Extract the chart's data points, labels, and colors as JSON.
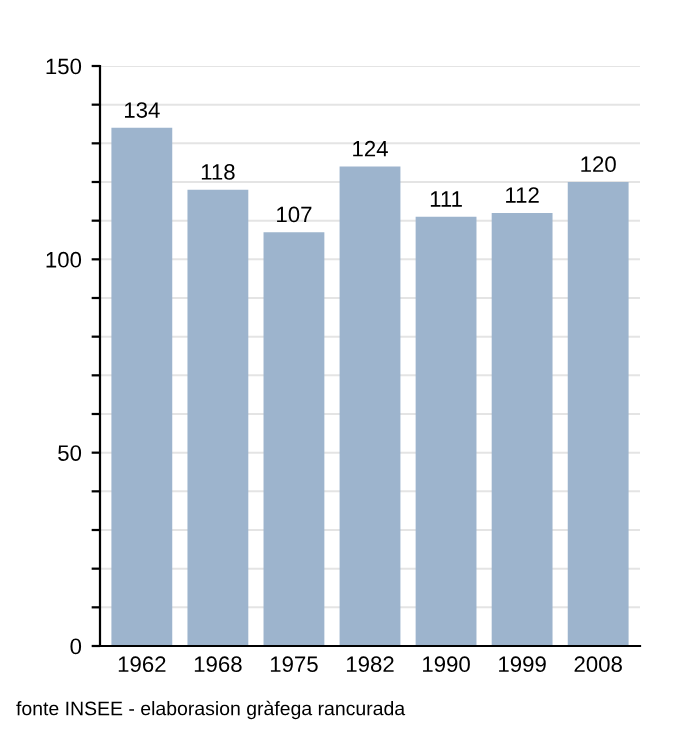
{
  "chart_data": {
    "type": "bar",
    "categories": [
      "1962",
      "1968",
      "1975",
      "1982",
      "1990",
      "1999",
      "2008"
    ],
    "values": [
      134,
      118,
      107,
      124,
      111,
      112,
      120
    ],
    "color": "#9db4cd",
    "ylim": [
      0,
      150
    ],
    "yticks": [
      0,
      {
        "value": 10,
        "label": null
      },
      {
        "value": 20,
        "label": null
      },
      {
        "value": 30,
        "label": null
      },
      {
        "value": 40,
        "label": null
      },
      50,
      {
        "value": 60,
        "label": null
      },
      {
        "value": 70,
        "label": null
      },
      {
        "value": 80,
        "label": null
      },
      {
        "value": 90,
        "label": null
      },
      100,
      {
        "value": 110,
        "label": null
      },
      {
        "value": 120,
        "label": null
      },
      {
        "value": 130,
        "label": null
      },
      {
        "value": 140,
        "label": null
      },
      150
    ],
    "grid": "y",
    "data_labels": true,
    "annotations": [
      "fonte INSEE - elaborasion gràfega rancurada"
    ]
  }
}
